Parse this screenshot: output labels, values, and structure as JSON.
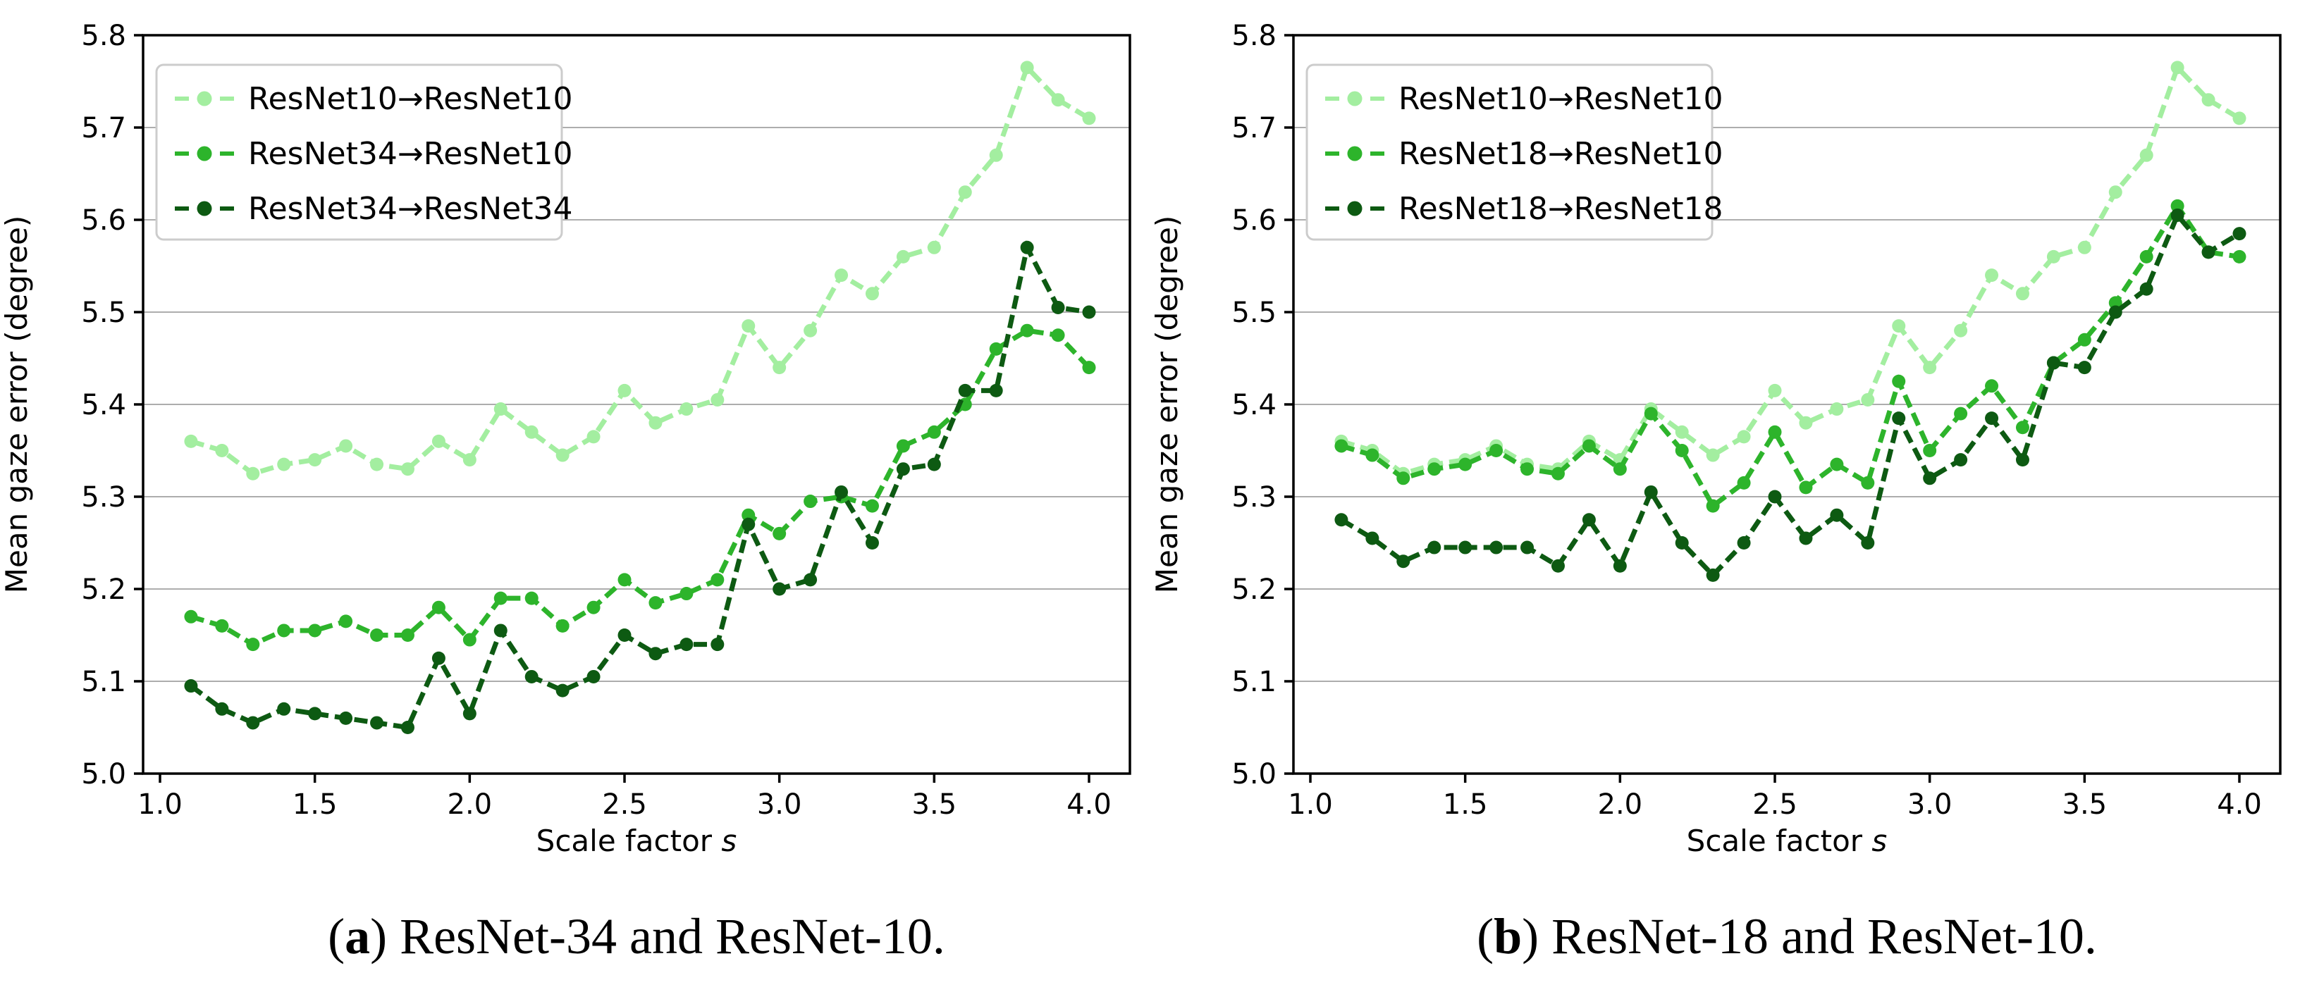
{
  "figure": {
    "background": "#ffffff"
  },
  "colors": {
    "light_green": "#a3eea0",
    "medium_green": "#2db42b",
    "dark_green": "#0d5a12",
    "grid": "#adadad",
    "spine": "#000000",
    "legend_border": "#cccccc",
    "text": "#000000"
  },
  "chart_data": [
    {
      "type": "line",
      "xlabel": "Scale factor",
      "xlabel_italic": "s",
      "ylabel": "Mean gaze error (degree)",
      "xlim": [
        1.0,
        4.0
      ],
      "ylim": [
        5.0,
        5.8
      ],
      "grid": "horizontal",
      "legend_position": "upper left",
      "xtick_labels": [
        "1.0",
        "1.5",
        "2.0",
        "2.5",
        "3.0",
        "3.5",
        "4.0"
      ],
      "ytick_labels": [
        "5.0",
        "5.1",
        "5.2",
        "5.3",
        "5.4",
        "5.5",
        "5.6",
        "5.7",
        "5.8"
      ],
      "x": [
        1.1,
        1.2,
        1.3,
        1.4,
        1.5,
        1.6,
        1.7,
        1.8,
        1.9,
        2.0,
        2.1,
        2.2,
        2.3,
        2.4,
        2.5,
        2.6,
        2.7,
        2.8,
        2.9,
        3.0,
        3.1,
        3.2,
        3.3,
        3.4,
        3.5,
        3.6,
        3.7,
        3.8,
        3.9,
        4.0
      ],
      "series": [
        {
          "name": "ResNet10→ResNet10",
          "color_key": "light_green",
          "values": [
            5.36,
            5.35,
            5.325,
            5.335,
            5.34,
            5.355,
            5.335,
            5.33,
            5.36,
            5.34,
            5.395,
            5.37,
            5.345,
            5.365,
            5.415,
            5.38,
            5.395,
            5.405,
            5.485,
            5.44,
            5.48,
            5.54,
            5.52,
            5.56,
            5.57,
            5.63,
            5.67,
            5.765,
            5.73,
            5.71
          ]
        },
        {
          "name": "ResNet34→ResNet10",
          "color_key": "medium_green",
          "values": [
            5.17,
            5.16,
            5.14,
            5.155,
            5.155,
            5.165,
            5.15,
            5.15,
            5.18,
            5.145,
            5.19,
            5.19,
            5.16,
            5.18,
            5.21,
            5.185,
            5.195,
            5.21,
            5.28,
            5.26,
            5.295,
            5.3,
            5.29,
            5.355,
            5.37,
            5.4,
            5.46,
            5.48,
            5.475,
            5.44
          ]
        },
        {
          "name": "ResNet34→ResNet34",
          "color_key": "dark_green",
          "values": [
            5.095,
            5.07,
            5.055,
            5.07,
            5.065,
            5.06,
            5.055,
            5.05,
            5.125,
            5.065,
            5.155,
            5.105,
            5.09,
            5.105,
            5.15,
            5.13,
            5.14,
            5.14,
            5.27,
            5.2,
            5.21,
            5.305,
            5.25,
            5.33,
            5.335,
            5.415,
            5.415,
            5.57,
            5.505,
            5.5
          ]
        }
      ],
      "caption": {
        "open": "(",
        "label": "a",
        "close": ") ",
        "text": "ResNet-34 and ResNet-10."
      }
    },
    {
      "type": "line",
      "xlabel": "Scale factor",
      "xlabel_italic": "s",
      "ylabel": "Mean gaze error (degree)",
      "xlim": [
        1.0,
        4.0
      ],
      "ylim": [
        5.0,
        5.8
      ],
      "grid": "horizontal",
      "legend_position": "upper left",
      "xtick_labels": [
        "1.0",
        "1.5",
        "2.0",
        "2.5",
        "3.0",
        "3.5",
        "4.0"
      ],
      "ytick_labels": [
        "5.0",
        "5.1",
        "5.2",
        "5.3",
        "5.4",
        "5.5",
        "5.6",
        "5.7",
        "5.8"
      ],
      "x": [
        1.1,
        1.2,
        1.3,
        1.4,
        1.5,
        1.6,
        1.7,
        1.8,
        1.9,
        2.0,
        2.1,
        2.2,
        2.3,
        2.4,
        2.5,
        2.6,
        2.7,
        2.8,
        2.9,
        3.0,
        3.1,
        3.2,
        3.3,
        3.4,
        3.5,
        3.6,
        3.7,
        3.8,
        3.9,
        4.0
      ],
      "series": [
        {
          "name": "ResNet10→ResNet10",
          "color_key": "light_green",
          "values": [
            5.36,
            5.35,
            5.325,
            5.335,
            5.34,
            5.355,
            5.335,
            5.33,
            5.36,
            5.34,
            5.395,
            5.37,
            5.345,
            5.365,
            5.415,
            5.38,
            5.395,
            5.405,
            5.485,
            5.44,
            5.48,
            5.54,
            5.52,
            5.56,
            5.57,
            5.63,
            5.67,
            5.765,
            5.73,
            5.71
          ]
        },
        {
          "name": "ResNet18→ResNet10",
          "color_key": "medium_green",
          "values": [
            5.355,
            5.345,
            5.32,
            5.33,
            5.335,
            5.35,
            5.33,
            5.325,
            5.355,
            5.33,
            5.39,
            5.35,
            5.29,
            5.315,
            5.37,
            5.31,
            5.335,
            5.315,
            5.425,
            5.35,
            5.39,
            5.42,
            5.375,
            5.445,
            5.47,
            5.51,
            5.56,
            5.615,
            5.565,
            5.56
          ]
        },
        {
          "name": "ResNet18→ResNet18",
          "color_key": "dark_green",
          "values": [
            5.275,
            5.255,
            5.23,
            5.245,
            5.245,
            5.245,
            5.245,
            5.225,
            5.275,
            5.225,
            5.305,
            5.25,
            5.215,
            5.25,
            5.3,
            5.255,
            5.28,
            5.25,
            5.385,
            5.32,
            5.34,
            5.385,
            5.34,
            5.445,
            5.44,
            5.5,
            5.525,
            5.605,
            5.565,
            5.585
          ]
        }
      ],
      "caption": {
        "open": "(",
        "label": "b",
        "close": ") ",
        "text": "ResNet-18 and ResNet-10."
      }
    }
  ]
}
